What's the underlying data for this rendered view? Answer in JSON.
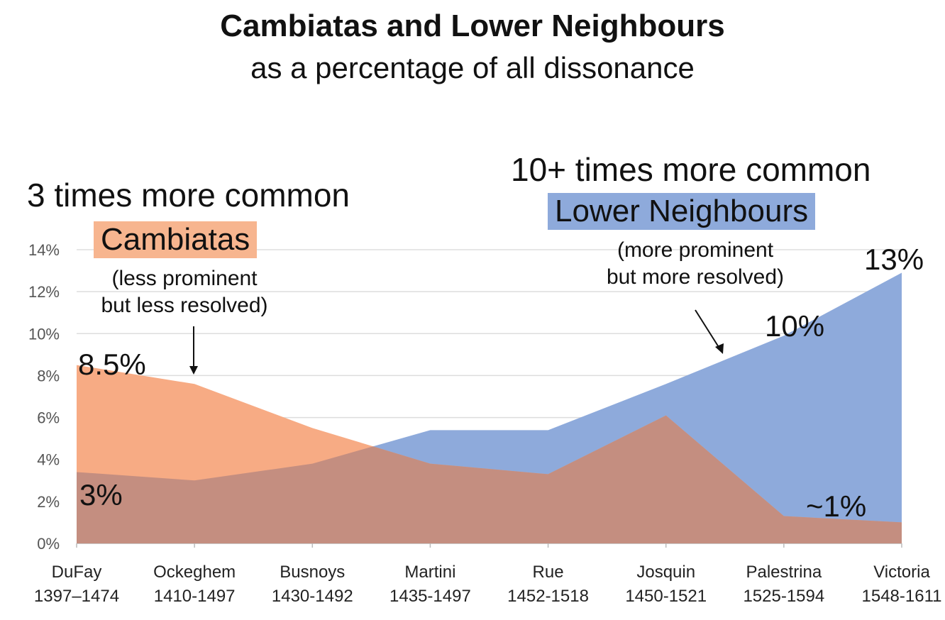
{
  "title": "Cambiatas and Lower Neighbours",
  "subtitle": "as a percentage of all dissonance",
  "annotations": {
    "left_header": "3 times more common",
    "right_header": "10+ times more common",
    "cambiatas_tag": "Cambiatas",
    "cambiatas_note_1": "(less prominent",
    "cambiatas_note_2": "but less resolved)",
    "lower_tag": "Lower Neighbours",
    "lower_note_1": "(more prominent",
    "lower_note_2": "but more resolved)",
    "pct_dufay_cambiata": "8.5%",
    "pct_dufay_lower": "3%",
    "pct_palestrina_lower": "10%",
    "pct_victoria_lower": "13%",
    "pct_victoria_cambiata": "~1%"
  },
  "colors": {
    "cambiatas": "#f7ab84",
    "lower_neighbours": "#8eaadb",
    "overlap": "#c48e80",
    "cambiatas_tag_bg": "#f7b58f",
    "lower_tag_bg": "#8eaadb"
  },
  "chart_data": {
    "type": "area",
    "categories": [
      "DuFay",
      "Ockeghem",
      "Busnoys",
      "Martini",
      "Rue",
      "Josquin",
      "Palestrina",
      "Victoria"
    ],
    "category_dates": [
      "1397–1474",
      "1410-1497",
      "1430-1492",
      "1435-1497",
      "1452-1518",
      "1450-1521",
      "1525-1594",
      "1548-1611"
    ],
    "series": [
      {
        "name": "Cambiatas",
        "values": [
          8.5,
          7.6,
          5.5,
          3.8,
          3.3,
          6.1,
          1.3,
          1.0
        ]
      },
      {
        "name": "Lower Neighbours",
        "values": [
          3.4,
          3.0,
          3.8,
          5.4,
          5.4,
          7.6,
          9.9,
          12.9
        ]
      }
    ],
    "ylim": [
      0,
      14
    ],
    "y_ticks": [
      "0%",
      "2%",
      "4%",
      "6%",
      "8%",
      "10%",
      "12%",
      "14%"
    ],
    "grid": true
  }
}
